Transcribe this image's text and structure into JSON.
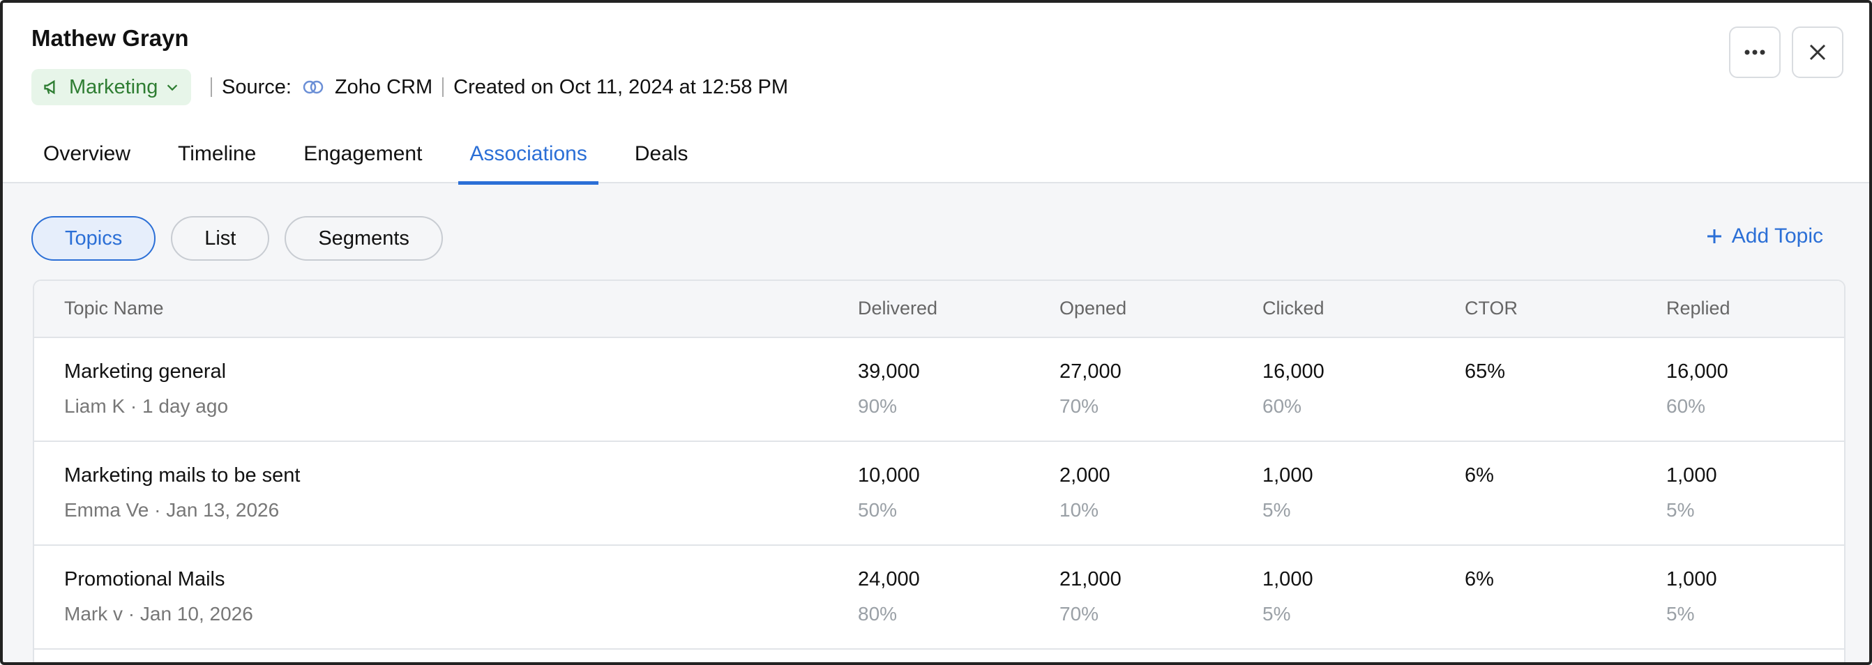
{
  "header": {
    "name": "Mathew Grayn",
    "tag": "Marketing",
    "source_label": "Source:",
    "source": "Zoho CRM",
    "created": "Created on Oct 11, 2024 at 12:58 PM"
  },
  "tabs": [
    "Overview",
    "Timeline",
    "Engagement",
    "Associations",
    "Deals"
  ],
  "active_tab": 3,
  "filters": [
    "Topics",
    "List",
    "Segments"
  ],
  "active_filter": 0,
  "add_topic": "Add Topic",
  "table": {
    "columns": [
      "Topic Name",
      "Delivered",
      "Opened",
      "Clicked",
      "CTOR",
      "Replied"
    ],
    "rows": [
      {
        "name": "Marketing general",
        "meta": "Liam K · 1 day ago",
        "cells": [
          [
            "39,000",
            "90%"
          ],
          [
            "27,000",
            "70%"
          ],
          [
            "16,000",
            "60%"
          ],
          [
            "65%"
          ],
          [
            "16,000",
            "60%"
          ]
        ]
      },
      {
        "name": "Marketing mails to be sent",
        "meta": "Emma Ve · Jan 13, 2026",
        "cells": [
          [
            "10,000",
            "50%"
          ],
          [
            "2,000",
            "10%"
          ],
          [
            "1,000",
            "5%"
          ],
          [
            "6%"
          ],
          [
            "1,000",
            "5%"
          ]
        ]
      },
      {
        "name": "Promotional Mails",
        "meta": "Mark v · Jan 10, 2026",
        "cells": [
          [
            "24,000",
            "80%"
          ],
          [
            "21,000",
            "70%"
          ],
          [
            "1,000",
            "5%"
          ],
          [
            "6%"
          ],
          [
            "1,000",
            "5%"
          ]
        ]
      }
    ]
  }
}
